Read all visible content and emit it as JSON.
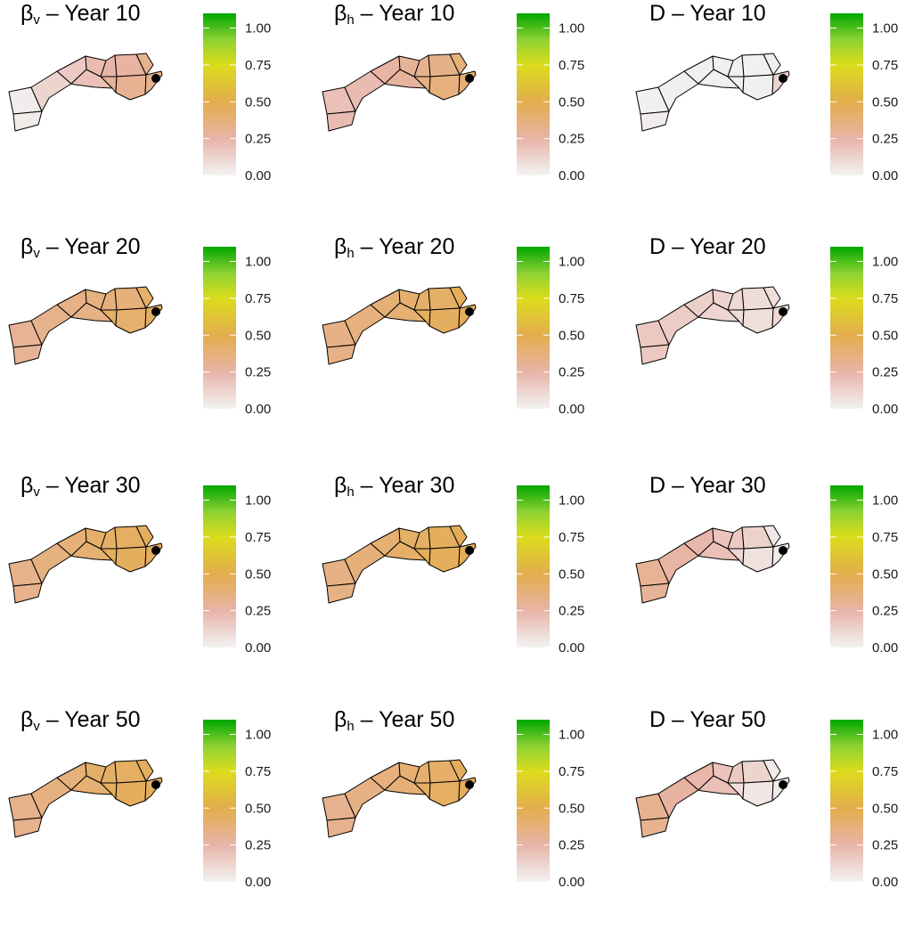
{
  "colors": {
    "scale": [
      "#f2f2f2",
      "#e8b4a8",
      "#e3ad4d",
      "#dcdc1c",
      "#8ed233",
      "#00a600"
    ],
    "outline": "#000000",
    "dot": "#000000"
  },
  "chart_data": [
    {
      "type": "heatmap",
      "title_symbol": "β",
      "title_sub": "v",
      "title_text": " – Year  10",
      "legend_ticks": [
        "0.00",
        "0.25",
        "0.50",
        "0.75",
        "1.00"
      ],
      "legend_range": [
        0,
        1.1
      ],
      "regions": [
        {
          "name": "1",
          "value": 0.02
        },
        {
          "name": "2",
          "value": 0.03
        },
        {
          "name": "3",
          "value": 0.12
        },
        {
          "name": "4",
          "value": 0.16
        },
        {
          "name": "5",
          "value": 0.2
        },
        {
          "name": "6",
          "value": 0.22
        },
        {
          "name": "7",
          "value": 0.25
        },
        {
          "name": "8",
          "value": 0.3
        },
        {
          "name": "9",
          "value": 0.27
        },
        {
          "name": "10",
          "value": 0.31
        },
        {
          "name": "11",
          "value": 0.32
        },
        {
          "name": "12",
          "value": 0.33
        }
      ]
    },
    {
      "type": "heatmap",
      "title_symbol": "β",
      "title_sub": "h",
      "title_text": " – Year  10",
      "legend_ticks": [
        "0.00",
        "0.25",
        "0.50",
        "0.75",
        "1.00"
      ],
      "legend_range": [
        0,
        1.1
      ],
      "regions": [
        {
          "name": "1",
          "value": 0.2
        },
        {
          "name": "2",
          "value": 0.22
        },
        {
          "name": "3",
          "value": 0.22
        },
        {
          "name": "4",
          "value": 0.26
        },
        {
          "name": "5",
          "value": 0.28
        },
        {
          "name": "6",
          "value": 0.3
        },
        {
          "name": "7",
          "value": 0.31
        },
        {
          "name": "8",
          "value": 0.36
        },
        {
          "name": "9",
          "value": 0.34
        },
        {
          "name": "10",
          "value": 0.37
        },
        {
          "name": "11",
          "value": 0.38
        },
        {
          "name": "12",
          "value": 0.4
        }
      ]
    },
    {
      "type": "heatmap",
      "title_symbol": "",
      "title_sub": "",
      "title_text": "D – Year  10",
      "legend_ticks": [
        "0.00",
        "0.25",
        "0.50",
        "0.75",
        "1.00"
      ],
      "legend_range": [
        0,
        1.1
      ],
      "regions": [
        {
          "name": "1",
          "value": 0.01
        },
        {
          "name": "2",
          "value": 0.02
        },
        {
          "name": "3",
          "value": 0.01
        },
        {
          "name": "4",
          "value": 0.01
        },
        {
          "name": "5",
          "value": 0.01
        },
        {
          "name": "6",
          "value": 0.01
        },
        {
          "name": "7",
          "value": 0.01
        },
        {
          "name": "8",
          "value": 0.01
        },
        {
          "name": "9",
          "value": 0.01
        },
        {
          "name": "10",
          "value": 0.01
        },
        {
          "name": "11",
          "value": 0.02
        },
        {
          "name": "12",
          "value": 0.12
        }
      ]
    },
    {
      "type": "heatmap",
      "title_symbol": "β",
      "title_sub": "v",
      "title_text": " – Year  20",
      "legend_ticks": [
        "0.00",
        "0.25",
        "0.50",
        "0.75",
        "1.00"
      ],
      "legend_range": [
        0,
        1.1
      ],
      "regions": [
        {
          "name": "1",
          "value": 0.3
        },
        {
          "name": "2",
          "value": 0.3
        },
        {
          "name": "3",
          "value": 0.33
        },
        {
          "name": "4",
          "value": 0.34
        },
        {
          "name": "5",
          "value": 0.35
        },
        {
          "name": "6",
          "value": 0.36
        },
        {
          "name": "7",
          "value": 0.38
        },
        {
          "name": "8",
          "value": 0.43
        },
        {
          "name": "9",
          "value": 0.38
        },
        {
          "name": "10",
          "value": 0.41
        },
        {
          "name": "11",
          "value": 0.42
        },
        {
          "name": "12",
          "value": 0.44
        }
      ]
    },
    {
      "type": "heatmap",
      "title_symbol": "β",
      "title_sub": "h",
      "title_text": " – Year  20",
      "legend_ticks": [
        "0.00",
        "0.25",
        "0.50",
        "0.75",
        "1.00"
      ],
      "legend_range": [
        0,
        1.1
      ],
      "regions": [
        {
          "name": "1",
          "value": 0.34
        },
        {
          "name": "2",
          "value": 0.34
        },
        {
          "name": "3",
          "value": 0.37
        },
        {
          "name": "4",
          "value": 0.39
        },
        {
          "name": "5",
          "value": 0.4
        },
        {
          "name": "6",
          "value": 0.41
        },
        {
          "name": "7",
          "value": 0.42
        },
        {
          "name": "8",
          "value": 0.46
        },
        {
          "name": "9",
          "value": 0.43
        },
        {
          "name": "10",
          "value": 0.45
        },
        {
          "name": "11",
          "value": 0.46
        },
        {
          "name": "12",
          "value": 0.47
        }
      ]
    },
    {
      "type": "heatmap",
      "title_symbol": "",
      "title_sub": "",
      "title_text": "D – Year  20",
      "legend_ticks": [
        "0.00",
        "0.25",
        "0.50",
        "0.75",
        "1.00"
      ],
      "legend_range": [
        0,
        1.1
      ],
      "regions": [
        {
          "name": "1",
          "value": 0.17
        },
        {
          "name": "2",
          "value": 0.17
        },
        {
          "name": "3",
          "value": 0.15
        },
        {
          "name": "4",
          "value": 0.14
        },
        {
          "name": "5",
          "value": 0.12
        },
        {
          "name": "6",
          "value": 0.12
        },
        {
          "name": "7",
          "value": 0.1
        },
        {
          "name": "8",
          "value": 0.08
        },
        {
          "name": "9",
          "value": 0.09
        },
        {
          "name": "10",
          "value": 0.08
        },
        {
          "name": "11",
          "value": 0.08
        },
        {
          "name": "12",
          "value": 0.1
        }
      ]
    },
    {
      "type": "heatmap",
      "title_symbol": "β",
      "title_sub": "v",
      "title_text": " – Year  30",
      "legend_ticks": [
        "0.00",
        "0.25",
        "0.50",
        "0.75",
        "1.00"
      ],
      "legend_range": [
        0,
        1.1
      ],
      "regions": [
        {
          "name": "1",
          "value": 0.33
        },
        {
          "name": "2",
          "value": 0.33
        },
        {
          "name": "3",
          "value": 0.36
        },
        {
          "name": "4",
          "value": 0.38
        },
        {
          "name": "5",
          "value": 0.4
        },
        {
          "name": "6",
          "value": 0.42
        },
        {
          "name": "7",
          "value": 0.43
        },
        {
          "name": "8",
          "value": 0.46
        },
        {
          "name": "9",
          "value": 0.44
        },
        {
          "name": "10",
          "value": 0.45
        },
        {
          "name": "11",
          "value": 0.46
        },
        {
          "name": "12",
          "value": 0.46
        }
      ]
    },
    {
      "type": "heatmap",
      "title_symbol": "β",
      "title_sub": "h",
      "title_text": " – Year  30",
      "legend_ticks": [
        "0.00",
        "0.25",
        "0.50",
        "0.75",
        "1.00"
      ],
      "legend_range": [
        0,
        1.1
      ],
      "regions": [
        {
          "name": "1",
          "value": 0.35
        },
        {
          "name": "2",
          "value": 0.35
        },
        {
          "name": "3",
          "value": 0.38
        },
        {
          "name": "4",
          "value": 0.4
        },
        {
          "name": "5",
          "value": 0.42
        },
        {
          "name": "6",
          "value": 0.43
        },
        {
          "name": "7",
          "value": 0.44
        },
        {
          "name": "8",
          "value": 0.47
        },
        {
          "name": "9",
          "value": 0.45
        },
        {
          "name": "10",
          "value": 0.46
        },
        {
          "name": "11",
          "value": 0.47
        },
        {
          "name": "12",
          "value": 0.47
        }
      ]
    },
    {
      "type": "heatmap",
      "title_symbol": "",
      "title_sub": "",
      "title_text": "D – Year  30",
      "legend_ticks": [
        "0.00",
        "0.25",
        "0.50",
        "0.75",
        "1.00"
      ],
      "legend_range": [
        0,
        1.1
      ],
      "regions": [
        {
          "name": "1",
          "value": 0.3
        },
        {
          "name": "2",
          "value": 0.3
        },
        {
          "name": "3",
          "value": 0.26
        },
        {
          "name": "4",
          "value": 0.24
        },
        {
          "name": "5",
          "value": 0.2
        },
        {
          "name": "6",
          "value": 0.18
        },
        {
          "name": "7",
          "value": 0.16
        },
        {
          "name": "8",
          "value": 0.1
        },
        {
          "name": "9",
          "value": 0.13
        },
        {
          "name": "10",
          "value": 0.07
        },
        {
          "name": "11",
          "value": 0.04
        },
        {
          "name": "12",
          "value": 0.03
        }
      ]
    },
    {
      "type": "heatmap",
      "title_symbol": "β",
      "title_sub": "v",
      "title_text": " – Year  50",
      "legend_ticks": [
        "0.00",
        "0.25",
        "0.50",
        "0.75",
        "1.00"
      ],
      "legend_range": [
        0,
        1.1
      ],
      "regions": [
        {
          "name": "1",
          "value": 0.33
        },
        {
          "name": "2",
          "value": 0.33
        },
        {
          "name": "3",
          "value": 0.36
        },
        {
          "name": "4",
          "value": 0.38
        },
        {
          "name": "5",
          "value": 0.4
        },
        {
          "name": "6",
          "value": 0.42
        },
        {
          "name": "7",
          "value": 0.43
        },
        {
          "name": "8",
          "value": 0.46
        },
        {
          "name": "9",
          "value": 0.44
        },
        {
          "name": "10",
          "value": 0.45
        },
        {
          "name": "11",
          "value": 0.46
        },
        {
          "name": "12",
          "value": 0.46
        }
      ]
    },
    {
      "type": "heatmap",
      "title_symbol": "β",
      "title_sub": "h",
      "title_text": " – Year  50",
      "legend_ticks": [
        "0.00",
        "0.25",
        "0.50",
        "0.75",
        "1.00"
      ],
      "legend_range": [
        0,
        1.1
      ],
      "regions": [
        {
          "name": "1",
          "value": 0.32
        },
        {
          "name": "2",
          "value": 0.32
        },
        {
          "name": "3",
          "value": 0.35
        },
        {
          "name": "4",
          "value": 0.37
        },
        {
          "name": "5",
          "value": 0.39
        },
        {
          "name": "6",
          "value": 0.4
        },
        {
          "name": "7",
          "value": 0.41
        },
        {
          "name": "8",
          "value": 0.44
        },
        {
          "name": "9",
          "value": 0.42
        },
        {
          "name": "10",
          "value": 0.44
        },
        {
          "name": "11",
          "value": 0.45
        },
        {
          "name": "12",
          "value": 0.45
        }
      ]
    },
    {
      "type": "heatmap",
      "title_symbol": "",
      "title_sub": "",
      "title_text": "D – Year  50",
      "legend_ticks": [
        "0.00",
        "0.25",
        "0.50",
        "0.75",
        "1.00"
      ],
      "legend_range": [
        0,
        1.1
      ],
      "regions": [
        {
          "name": "1",
          "value": 0.32
        },
        {
          "name": "2",
          "value": 0.32
        },
        {
          "name": "3",
          "value": 0.27
        },
        {
          "name": "4",
          "value": 0.24
        },
        {
          "name": "5",
          "value": 0.2
        },
        {
          "name": "6",
          "value": 0.18
        },
        {
          "name": "7",
          "value": 0.16
        },
        {
          "name": "8",
          "value": 0.08
        },
        {
          "name": "9",
          "value": 0.12
        },
        {
          "name": "10",
          "value": 0.05
        },
        {
          "name": "11",
          "value": 0.03
        },
        {
          "name": "12",
          "value": 0.02
        }
      ]
    }
  ]
}
